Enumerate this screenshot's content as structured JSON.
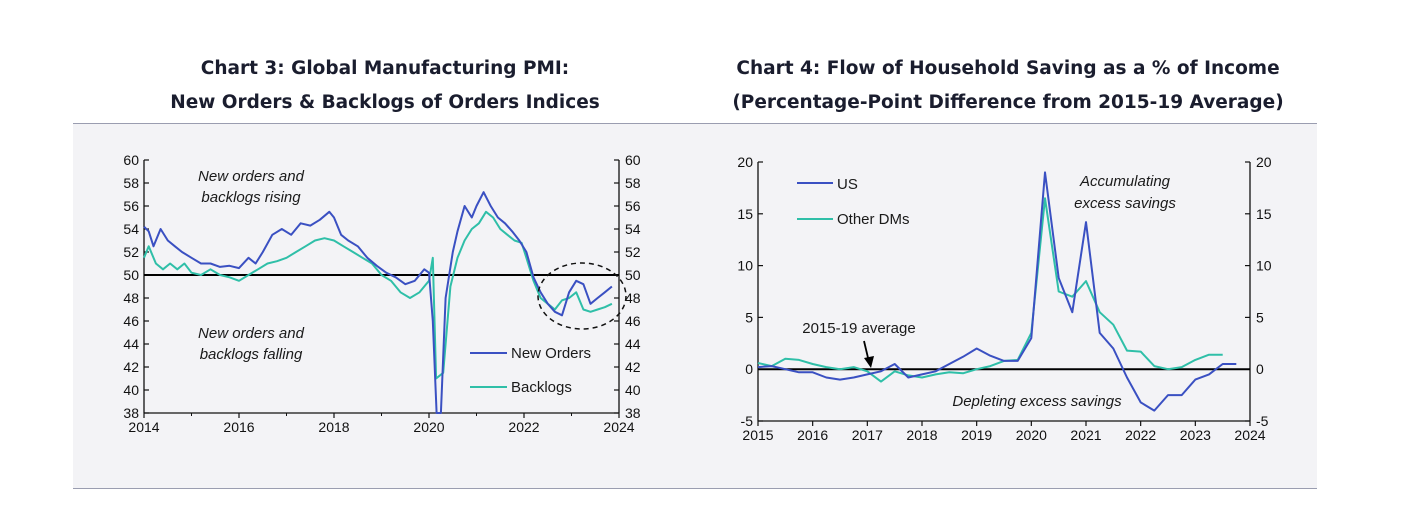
{
  "colors": {
    "primary": "#3a50c2",
    "secondary": "#2fbfa8",
    "axis": "#111111",
    "panel": "#f3f3f6"
  },
  "chart_data": [
    {
      "type": "line",
      "title": "Chart 3: Global Manufacturing PMI:",
      "subtitle": "New Orders & Backlogs of Orders Indices",
      "xlim": [
        2014,
        2024
      ],
      "ylim": [
        38,
        60
      ],
      "x_ticks": [
        "2014",
        "2016",
        "2018",
        "2020",
        "2022",
        "2024"
      ],
      "y_ticks": [
        "60",
        "58",
        "56",
        "54",
        "52",
        "50",
        "48",
        "46",
        "44",
        "42",
        "40",
        "38"
      ],
      "reference_line": 50,
      "annotations": [
        "New orders and",
        "backlogs rising",
        "New orders and",
        "backlogs falling"
      ],
      "highlight": "dashed ellipse around 2022-2024 readings",
      "legend_position": "bottom-right",
      "series": [
        {
          "name": "New Orders",
          "color": "#3a50c2",
          "x": [
            2014.0,
            2014.1,
            2014.2,
            2014.35,
            2014.5,
            2014.65,
            2014.8,
            2015.0,
            2015.2,
            2015.4,
            2015.6,
            2015.8,
            2016.0,
            2016.2,
            2016.35,
            2016.5,
            2016.7,
            2016.9,
            2017.1,
            2017.3,
            2017.5,
            2017.7,
            2017.9,
            2018.0,
            2018.15,
            2018.3,
            2018.5,
            2018.7,
            2018.9,
            2019.1,
            2019.3,
            2019.5,
            2019.7,
            2019.9,
            2020.0,
            2020.08,
            2020.16,
            2020.25,
            2020.35,
            2020.5,
            2020.6,
            2020.75,
            2020.9,
            2021.0,
            2021.15,
            2021.3,
            2021.45,
            2021.6,
            2021.75,
            2021.9,
            2022.05,
            2022.2,
            2022.35,
            2022.5,
            2022.65,
            2022.8,
            2022.95,
            2023.1,
            2023.25,
            2023.4,
            2023.55,
            2023.7,
            2023.85
          ],
          "values": [
            54.2,
            53.8,
            52.5,
            54.0,
            53.0,
            52.5,
            52.0,
            51.5,
            51.0,
            51.0,
            50.7,
            50.8,
            50.6,
            51.5,
            51.0,
            52.0,
            53.5,
            54.0,
            53.5,
            54.5,
            54.3,
            54.8,
            55.5,
            55.0,
            53.5,
            53.0,
            52.5,
            51.5,
            50.8,
            50.2,
            49.8,
            49.2,
            49.5,
            50.5,
            50.2,
            46.0,
            38.0,
            38.0,
            48.0,
            52.0,
            53.8,
            56.0,
            55.0,
            56.0,
            57.2,
            56.0,
            55.0,
            54.5,
            53.8,
            53.0,
            52.0,
            49.8,
            48.5,
            47.5,
            46.8,
            46.5,
            48.5,
            49.5,
            49.2,
            47.5,
            48.0,
            48.5,
            49.0
          ]
        },
        {
          "name": "Backlogs",
          "color": "#2fbfa8",
          "x": [
            2014.0,
            2014.1,
            2014.25,
            2014.4,
            2014.55,
            2014.7,
            2014.85,
            2015.0,
            2015.2,
            2015.4,
            2015.6,
            2015.8,
            2016.0,
            2016.2,
            2016.4,
            2016.6,
            2016.8,
            2017.0,
            2017.2,
            2017.4,
            2017.6,
            2017.8,
            2018.0,
            2018.2,
            2018.4,
            2018.6,
            2018.8,
            2019.0,
            2019.2,
            2019.4,
            2019.6,
            2019.8,
            2020.0,
            2020.08,
            2020.15,
            2020.3,
            2020.45,
            2020.6,
            2020.75,
            2020.9,
            2021.05,
            2021.2,
            2021.35,
            2021.5,
            2021.65,
            2021.8,
            2021.95,
            2022.05,
            2022.2,
            2022.35,
            2022.5,
            2022.65,
            2022.8,
            2022.95,
            2023.1,
            2023.25,
            2023.4,
            2023.55,
            2023.7,
            2023.85
          ],
          "values": [
            51.5,
            52.5,
            51.0,
            50.5,
            51.0,
            50.5,
            51.0,
            50.2,
            50.0,
            50.5,
            50.0,
            49.8,
            49.5,
            50.0,
            50.5,
            51.0,
            51.2,
            51.5,
            52.0,
            52.5,
            53.0,
            53.2,
            53.0,
            52.5,
            52.0,
            51.5,
            51.0,
            50.0,
            49.5,
            48.5,
            48.0,
            48.5,
            49.5,
            51.5,
            41.0,
            41.5,
            49.0,
            51.5,
            53.0,
            54.0,
            54.5,
            55.5,
            55.0,
            54.0,
            53.5,
            53.0,
            52.8,
            51.5,
            49.5,
            48.0,
            47.5,
            47.0,
            47.8,
            48.0,
            48.5,
            47.0,
            46.8,
            47.0,
            47.2,
            47.5
          ]
        }
      ]
    },
    {
      "type": "line",
      "title": "Chart 4: Flow of Household Saving as a % of Income",
      "subtitle": "(Percentage-Point Difference from 2015-19 Average)",
      "xlim": [
        2015,
        2024
      ],
      "ylim": [
        -5,
        20
      ],
      "x_ticks": [
        "2015",
        "2016",
        "2017",
        "2018",
        "2019",
        "2020",
        "2021",
        "2022",
        "2023",
        "2024"
      ],
      "y_ticks": [
        "20",
        "15",
        "10",
        "5",
        "0",
        "-5"
      ],
      "reference_line": 0,
      "annotations": [
        "Accumulating",
        "excess savings",
        "Depleting excess savings",
        "2015-19 average"
      ],
      "legend_position": "top-left",
      "series": [
        {
          "name": "US",
          "color": "#3a50c2",
          "x": [
            2015.0,
            2015.25,
            2015.5,
            2015.75,
            2016.0,
            2016.25,
            2016.5,
            2016.75,
            2017.0,
            2017.25,
            2017.5,
            2017.75,
            2018.0,
            2018.25,
            2018.5,
            2018.75,
            2019.0,
            2019.25,
            2019.5,
            2019.75,
            2020.0,
            2020.25,
            2020.5,
            2020.75,
            2021.0,
            2021.25,
            2021.5,
            2021.75,
            2022.0,
            2022.25,
            2022.5,
            2022.75,
            2023.0,
            2023.25,
            2023.5,
            2023.75
          ],
          "values": [
            0.2,
            0.3,
            0.0,
            -0.3,
            -0.3,
            -0.8,
            -1.0,
            -0.8,
            -0.5,
            -0.2,
            0.5,
            -0.8,
            -0.5,
            -0.2,
            0.5,
            1.2,
            2.0,
            1.3,
            0.8,
            0.8,
            3.0,
            19.0,
            8.8,
            5.5,
            14.2,
            3.5,
            2.0,
            -0.8,
            -3.2,
            -4.0,
            -2.5,
            -2.5,
            -1.0,
            -0.5,
            0.5,
            0.5
          ]
        },
        {
          "name": "Other DMs",
          "color": "#2fbfa8",
          "x": [
            2015.0,
            2015.25,
            2015.5,
            2015.75,
            2016.0,
            2016.25,
            2016.5,
            2016.75,
            2017.0,
            2017.25,
            2017.5,
            2017.75,
            2018.0,
            2018.25,
            2018.5,
            2018.75,
            2019.0,
            2019.25,
            2019.5,
            2019.75,
            2020.0,
            2020.25,
            2020.5,
            2020.75,
            2021.0,
            2021.25,
            2021.5,
            2021.75,
            2022.0,
            2022.25,
            2022.5,
            2022.75,
            2023.0,
            2023.25,
            2023.5
          ],
          "values": [
            0.6,
            0.3,
            1.0,
            0.9,
            0.5,
            0.2,
            0.0,
            0.2,
            -0.2,
            -1.2,
            -0.2,
            -0.6,
            -0.8,
            -0.5,
            -0.3,
            -0.4,
            0.0,
            0.3,
            0.8,
            0.9,
            3.5,
            16.5,
            7.5,
            7.0,
            8.5,
            5.5,
            4.3,
            1.8,
            1.7,
            0.3,
            0.0,
            0.2,
            0.9,
            1.4,
            1.4
          ]
        }
      ]
    }
  ]
}
